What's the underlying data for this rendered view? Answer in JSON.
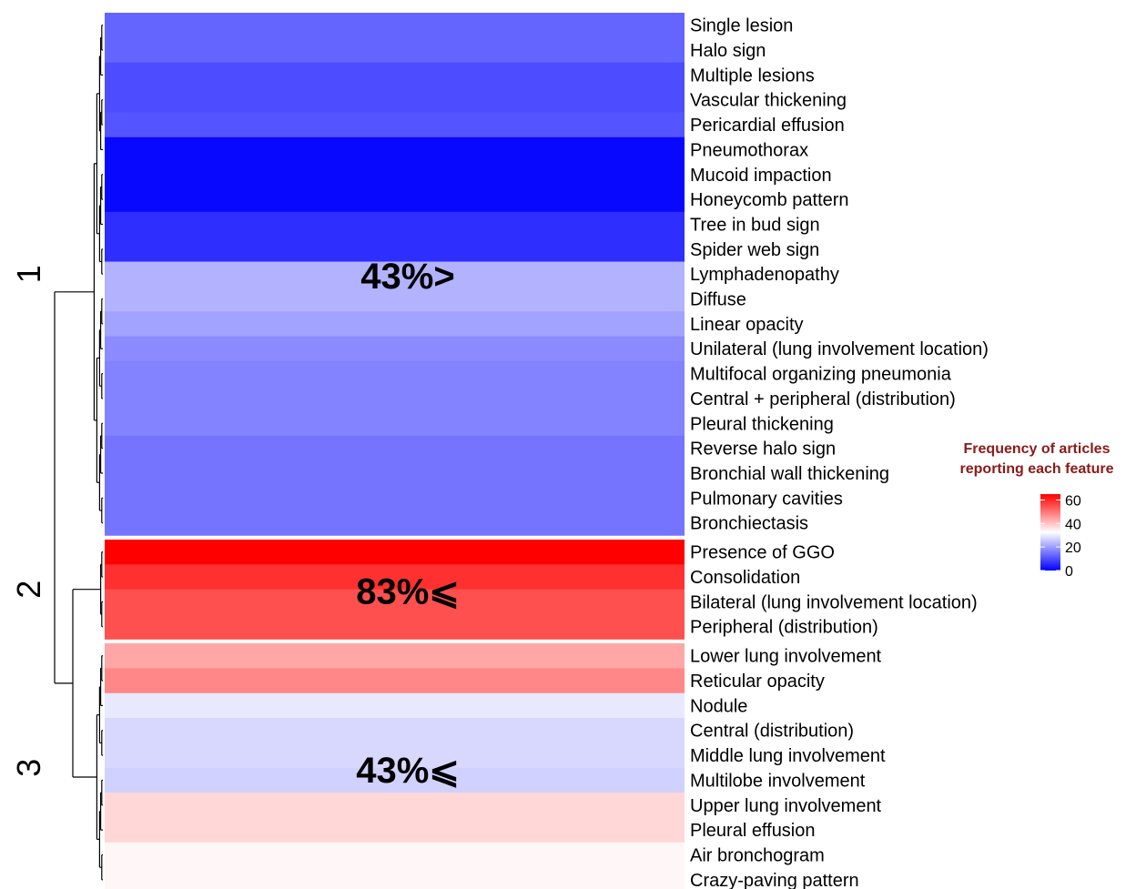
{
  "chart_data": {
    "type": "heatmap",
    "title": "",
    "color_scale": {
      "min": 0,
      "mid": 33,
      "max": 65,
      "low_color": "#0000ff",
      "mid_color": "#ffffff",
      "high_color": "#ff0000"
    },
    "legend": {
      "title_line1": "Frequency of articles",
      "title_line2": "reporting each feature",
      "ticks": [
        "60",
        "40",
        "20",
        "0"
      ],
      "placement": "right"
    },
    "clusters": [
      {
        "label": "1",
        "annotation": "43%>",
        "start": 0,
        "end": 20
      },
      {
        "label": "2",
        "annotation": "83%⩽",
        "start": 21,
        "end": 24
      },
      {
        "label": "3",
        "annotation": "43%⩽",
        "start": 25,
        "end": 34
      }
    ],
    "rows": [
      {
        "label": "Single lesion",
        "value": 13
      },
      {
        "label": "Halo sign",
        "value": 13
      },
      {
        "label": "Multiple lesions",
        "value": 10
      },
      {
        "label": "Vascular thickening",
        "value": 10
      },
      {
        "label": "Pericardial effusion",
        "value": 11
      },
      {
        "label": "Pneumothorax",
        "value": 1
      },
      {
        "label": "Mucoid impaction",
        "value": 1
      },
      {
        "label": "Honeycomb pattern",
        "value": 1
      },
      {
        "label": "Tree in bud sign",
        "value": 6
      },
      {
        "label": "Spider web sign",
        "value": 6
      },
      {
        "label": "Lymphadenopathy",
        "value": 23
      },
      {
        "label": "Diffuse",
        "value": 23
      },
      {
        "label": "Linear opacity",
        "value": 21
      },
      {
        "label": "Unilateral (lung involvement location)",
        "value": 18
      },
      {
        "label": "Multifocal organizing pneumonia",
        "value": 17
      },
      {
        "label": "Central + peripheral (distribution)",
        "value": 17
      },
      {
        "label": "Pleural thickening",
        "value": 17
      },
      {
        "label": "Reverse halo sign",
        "value": 15
      },
      {
        "label": "Bronchial wall thickening",
        "value": 15
      },
      {
        "label": "Pulmonary cavities",
        "value": 15
      },
      {
        "label": "Bronchiectasis",
        "value": 15
      },
      {
        "label": "Presence of GGO",
        "value": 65
      },
      {
        "label": "Consolidation",
        "value": 59
      },
      {
        "label": "Bilateral (lung involvement location)",
        "value": 55
      },
      {
        "label": "Peripheral (distribution)",
        "value": 55
      },
      {
        "label": "Lower lung involvement",
        "value": 44
      },
      {
        "label": "Reticular opacity",
        "value": 48
      },
      {
        "label": "Nodule",
        "value": 30
      },
      {
        "label": "Central (distribution)",
        "value": 28
      },
      {
        "label": "Middle lung involvement",
        "value": 28
      },
      {
        "label": "Multilobe involvement",
        "value": 27
      },
      {
        "label": "Upper lung involvement",
        "value": 38
      },
      {
        "label": "Pleural effusion",
        "value": 38
      },
      {
        "label": "Air bronchogram",
        "value": 34
      },
      {
        "label": "Crazy-paving pattern",
        "value": 34
      }
    ]
  }
}
